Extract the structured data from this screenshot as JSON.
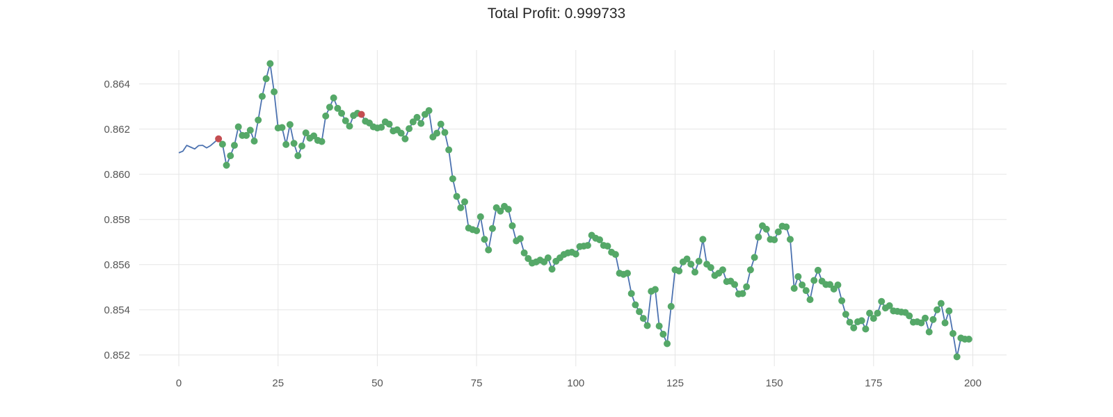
{
  "chart_data": {
    "type": "line",
    "title": "Total Profit: 0.999733",
    "xlabel": "",
    "ylabel": "",
    "xlim": [
      -10,
      208.5
    ],
    "ylim": [
      0.8515,
      0.8655
    ],
    "x_ticks": [
      0,
      25,
      50,
      75,
      100,
      125,
      150,
      175,
      200
    ],
    "x_tick_labels": [
      "0",
      "25",
      "50",
      "75",
      "100",
      "125",
      "150",
      "175",
      "200"
    ],
    "y_ticks": [
      0.852,
      0.854,
      0.856,
      0.858,
      0.86,
      0.862,
      0.864
    ],
    "y_tick_labels": [
      "0.852",
      "0.854",
      "0.856",
      "0.858",
      "0.860",
      "0.862",
      "0.864"
    ],
    "grid": true,
    "colors": {
      "line": "#4c72b0",
      "long_marker": "#55a868",
      "short_marker": "#c44e52"
    },
    "series": [
      {
        "values": [
          0.86095,
          0.86102,
          0.86128,
          0.8612,
          0.86112,
          0.86127,
          0.86128,
          0.86117,
          0.86127,
          0.86142,
          0.86157,
          0.86133,
          0.8604,
          0.86082,
          0.86128,
          0.8621,
          0.86172,
          0.86172,
          0.86195,
          0.86147,
          0.8624,
          0.86345,
          0.86423,
          0.8649,
          0.86365,
          0.86205,
          0.86207,
          0.86132,
          0.8622,
          0.86137,
          0.86082,
          0.86125,
          0.86183,
          0.8616,
          0.8617,
          0.8615,
          0.86145,
          0.86258,
          0.86297,
          0.86338,
          0.86292,
          0.8627,
          0.86237,
          0.86213,
          0.8626,
          0.8627,
          0.86265,
          0.86235,
          0.86227,
          0.8621,
          0.86205,
          0.86208,
          0.86232,
          0.86222,
          0.86192,
          0.86197,
          0.86182,
          0.86157,
          0.86202,
          0.86232,
          0.86252,
          0.86225,
          0.86265,
          0.86282,
          0.86165,
          0.86182,
          0.86222,
          0.86185,
          0.86108,
          0.8598,
          0.85902,
          0.85852,
          0.85878,
          0.85762,
          0.85755,
          0.8575,
          0.85812,
          0.85712,
          0.85665,
          0.8576,
          0.85852,
          0.85837,
          0.85858,
          0.85845,
          0.85772,
          0.85705,
          0.85715,
          0.85652,
          0.85627,
          0.85607,
          0.85612,
          0.8562,
          0.85612,
          0.8563,
          0.8558,
          0.85615,
          0.8563,
          0.85645,
          0.85652,
          0.85655,
          0.85647,
          0.8568,
          0.85682,
          0.85685,
          0.8573,
          0.85717,
          0.8571,
          0.85685,
          0.85682,
          0.85655,
          0.85645,
          0.85562,
          0.85557,
          0.85562,
          0.85472,
          0.85422,
          0.85392,
          0.85362,
          0.8533,
          0.85482,
          0.8549,
          0.85328,
          0.85292,
          0.8525,
          0.85415,
          0.85577,
          0.85572,
          0.85612,
          0.85625,
          0.85602,
          0.85567,
          0.85615,
          0.85712,
          0.85602,
          0.85587,
          0.85552,
          0.85562,
          0.85577,
          0.85525,
          0.85527,
          0.85512,
          0.8547,
          0.85472,
          0.85502,
          0.85577,
          0.85632,
          0.85722,
          0.85772,
          0.85757,
          0.85712,
          0.8571,
          0.85745,
          0.8577,
          0.85767,
          0.85712,
          0.85495,
          0.85547,
          0.8551,
          0.85485,
          0.85445,
          0.8553,
          0.85575,
          0.85527,
          0.85512,
          0.85512,
          0.85492,
          0.8551,
          0.8544,
          0.8538,
          0.85345,
          0.8532,
          0.85347,
          0.85352,
          0.85315,
          0.85385,
          0.85362,
          0.85385,
          0.85437,
          0.85408,
          0.85418,
          0.85395,
          0.85393,
          0.8539,
          0.85388,
          0.85373,
          0.85345,
          0.85347,
          0.85342,
          0.85363,
          0.85302,
          0.85357,
          0.854,
          0.85428,
          0.85342,
          0.85395,
          0.85295,
          0.85192,
          0.85275,
          0.8527,
          0.8527
        ],
        "markers": {
          "short_at": [
            10,
            46
          ],
          "long_range": [
            11,
            199
          ],
          "long_excluded": [
            46
          ]
        }
      }
    ]
  }
}
